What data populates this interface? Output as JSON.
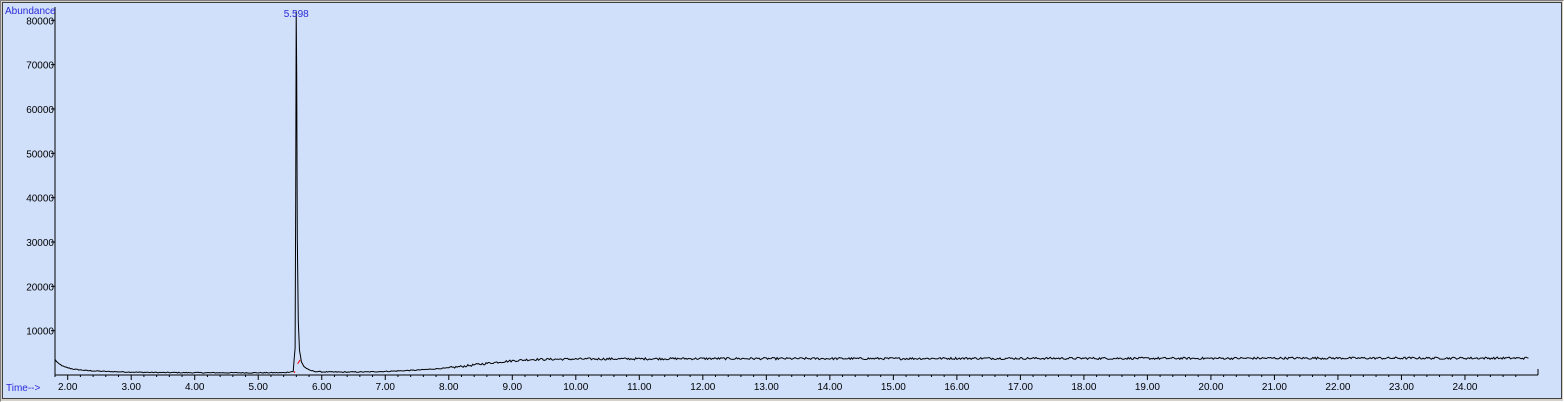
{
  "chart_data": {
    "type": "line",
    "title": "",
    "ylabel": "Abundance",
    "xlabel": "Time-->",
    "xlim": [
      1.8,
      25.15
    ],
    "ylim": [
      0,
      83000
    ],
    "x_ticks": [
      2,
      3,
      4,
      5,
      6,
      7,
      8,
      9,
      10,
      11,
      12,
      13,
      14,
      15,
      16,
      17,
      18,
      19,
      20,
      21,
      22,
      23,
      24
    ],
    "x_tick_labels": [
      "2.00",
      "3.00",
      "4.00",
      "5.00",
      "6.00",
      "7.00",
      "8.00",
      "9.00",
      "10.00",
      "11.00",
      "12.00",
      "13.00",
      "14.00",
      "15.00",
      "16.00",
      "17.00",
      "18.00",
      "19.00",
      "20.00",
      "21.00",
      "22.00",
      "23.00",
      "24.00"
    ],
    "y_ticks": [
      10000,
      20000,
      30000,
      40000,
      50000,
      60000,
      70000,
      80000
    ],
    "y_tick_labels": [
      "10000",
      "20000",
      "30000",
      "40000",
      "50000",
      "60000",
      "70000",
      "80000"
    ],
    "peak_label": "5.598",
    "peak": {
      "x": 5.598,
      "y": 82000
    },
    "line_color": "#000000",
    "integration_color": "#ff0000",
    "label_color": "#2a2ad8",
    "background_color": "#d0e0fb",
    "series": [
      {
        "x": [
          1.8,
          1.85,
          1.95,
          2.1,
          2.3,
          2.6,
          3.0,
          3.5,
          4.0,
          4.5,
          5.0,
          5.4,
          5.55,
          5.58,
          5.59,
          5.598,
          5.605,
          5.615,
          5.63,
          5.65,
          5.68,
          5.72,
          5.8,
          5.9,
          6.0,
          6.3,
          6.7,
          7.0,
          7.5,
          8.0,
          8.3,
          8.7,
          9.0,
          9.3,
          10.0,
          11.0,
          12.0,
          13.0,
          14.0,
          15.0,
          16.0,
          17.0,
          18.0,
          19.0,
          20.0,
          21.0,
          22.0,
          23.0,
          24.0,
          25.0
        ],
        "y": [
          3500,
          2600,
          1800,
          1300,
          1000,
          800,
          650,
          550,
          520,
          500,
          500,
          520,
          800,
          6000,
          40000,
          82000,
          68000,
          31000,
          12000,
          5500,
          3000,
          1900,
          1100,
          800,
          700,
          650,
          700,
          800,
          1100,
          1600,
          2100,
          2800,
          3200,
          3500,
          3600,
          3650,
          3700,
          3700,
          3700,
          3700,
          3750,
          3750,
          3750,
          3750,
          3750,
          3800,
          3800,
          3800,
          3800,
          3800
        ]
      }
    ]
  }
}
